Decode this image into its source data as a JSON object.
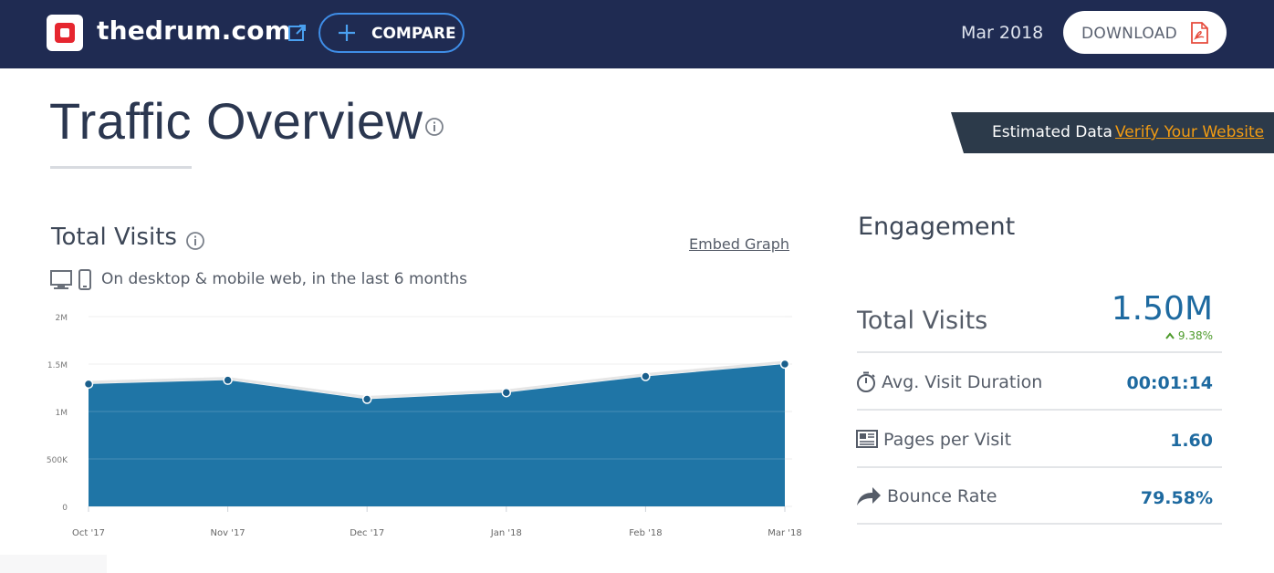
{
  "header": {
    "site_name": "thedrum.com",
    "compare_label": "COMPARE",
    "date": "Mar 2018",
    "download_label": "DOWNLOAD",
    "icons": [
      "site-logo",
      "external-link-icon",
      "plus-icon",
      "pdf-icon"
    ]
  },
  "page": {
    "title": "Traffic Overview"
  },
  "banner": {
    "estimated_text": "Estimated Data",
    "verify_link": "Verify Your Website"
  },
  "total_visits": {
    "title": "Total Visits",
    "embed_link": "Embed Graph",
    "subtitle": "On desktop & mobile web, in the last 6 months"
  },
  "chart_data": {
    "type": "area",
    "title": "Total Visits",
    "categories": [
      "Oct '17",
      "Nov '17",
      "Dec '17",
      "Jan '18",
      "Feb '18",
      "Mar '18"
    ],
    "series": [
      {
        "values": [
          1290000,
          1330000,
          1130000,
          1200000,
          1370000,
          1500000
        ]
      }
    ],
    "ylim": [
      0,
      2000000
    ],
    "y_ticks": [
      0,
      500000,
      1000000,
      1500000,
      2000000
    ],
    "y_tick_labels": [
      "0",
      "500K",
      "1M",
      "1.5M",
      "2M"
    ],
    "grid": true,
    "colors": {
      "area": "#1f75a6",
      "line": "#e6e6e6",
      "point": "#1a5f8c"
    }
  },
  "engagement": {
    "title": "Engagement",
    "total_visits_label": "Total Visits",
    "total_visits_value": "1.50M",
    "total_visits_change": "9.38%",
    "metrics": [
      {
        "icon": "stopwatch-icon",
        "label": "Avg. Visit Duration",
        "value": "00:01:14"
      },
      {
        "icon": "pages-icon",
        "label": "Pages per Visit",
        "value": "1.60"
      },
      {
        "icon": "bounce-arrow-icon",
        "label": "Bounce Rate",
        "value": "79.58%"
      }
    ]
  },
  "colors": {
    "header_bg": "#1f2b52",
    "accent_blue": "#1e6aa0",
    "compare_border": "#3f8ee8",
    "verify_link": "#f39c12",
    "positive_change": "#4c9a2a"
  }
}
